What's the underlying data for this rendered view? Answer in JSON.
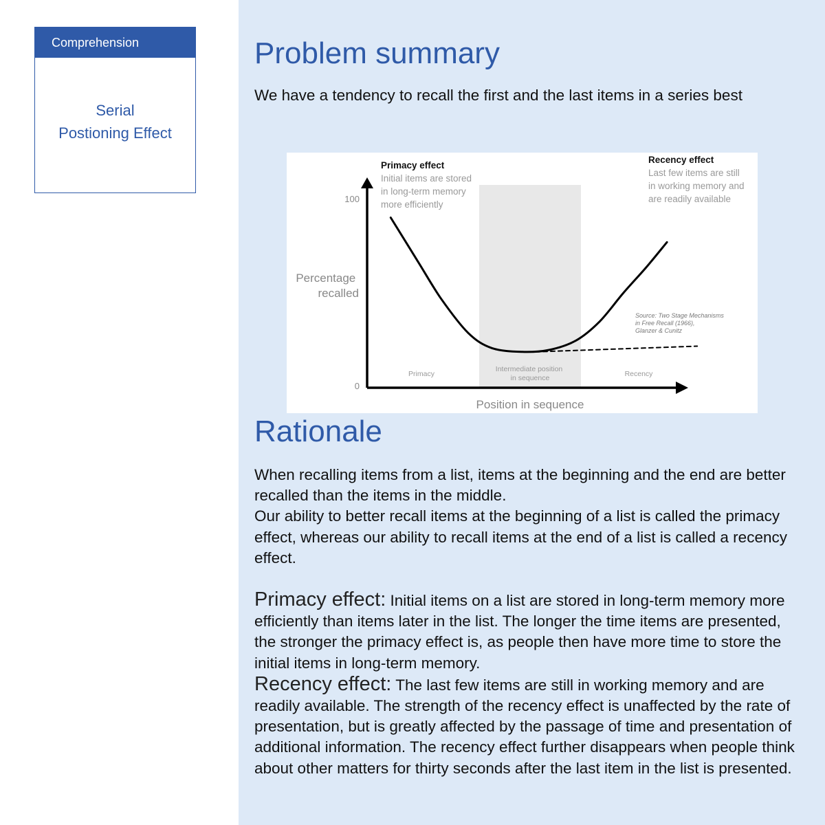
{
  "card": {
    "category": "Comprehension",
    "title_lines": [
      "Serial",
      "Postioning Effect"
    ]
  },
  "problem": {
    "heading": "Problem summary",
    "text": "We have a tendency to recall the first and the last items in a series best"
  },
  "chart_data": {
    "type": "line",
    "ylabel": "Percentage recalled",
    "xlabel": "Position in sequence",
    "y_ticks": [
      "0",
      "100"
    ],
    "ylim": [
      0,
      100
    ],
    "xlim": [
      0,
      10
    ],
    "series": [
      {
        "name": "",
        "style": "solid",
        "x": [
          0.7,
          1.5,
          2.2,
          3.0,
          3.7,
          4.6,
          5.4,
          6.2,
          6.9,
          7.6,
          8.3,
          8.9
        ],
        "y": [
          90,
          67,
          47,
          29,
          21,
          19,
          20,
          25,
          35,
          50,
          64,
          77
        ]
      },
      {
        "name": "",
        "style": "dashed",
        "x": [
          5.0,
          9.8
        ],
        "y": [
          19,
          22
        ]
      }
    ],
    "zones": [
      "Primacy",
      "Intermediate position in sequence",
      "Recency"
    ],
    "annotations": {
      "primacy_title": "Primacy effect",
      "primacy_text": [
        "Initial items are stored",
        "in long-term memory",
        "more efficiently"
      ],
      "recency_title": "Recency effect",
      "recency_text": [
        "Last few items are still",
        "in working memory and",
        "are readily available"
      ],
      "source": [
        "Source: Two Stage Mechanisms",
        "in Free Recall (1966),",
        "Glanzer & Cunitz"
      ]
    },
    "colors": {
      "curve": "#000000",
      "shade": "#e8e8e8",
      "muted": "#999999"
    }
  },
  "rationale": {
    "heading": "Rationale",
    "p1": "When recalling items from a list, items at the beginning and the end are better recalled than the items in the middle.",
    "p2": "Our ability to better recall items at the beginning of a list is called the primacy effect, whereas our ability to recall items at the end of a list is called a recency effect.",
    "primacy_term": "Primacy effect:",
    "primacy_text": "Initial items on a list are stored in long-term memory more efficiently than items later in the list. The longer the time items are presented, the stronger the primacy effect is, as people then have more time to store the initial items in long-term memory.",
    "recency_term": "Recency effect:",
    "recency_text": "The last few items are still in working memory and are readily available. The strength of the recency effect is unaffected by the rate of presentation, but is greatly affected by the passage of time and presentation of additional information. The recency effect further disappears when people think about other matters for thirty seconds after the last item in the list is presented."
  },
  "theme": {
    "accent": "#2f5aa8",
    "panel_bg": "#dde9f7"
  }
}
